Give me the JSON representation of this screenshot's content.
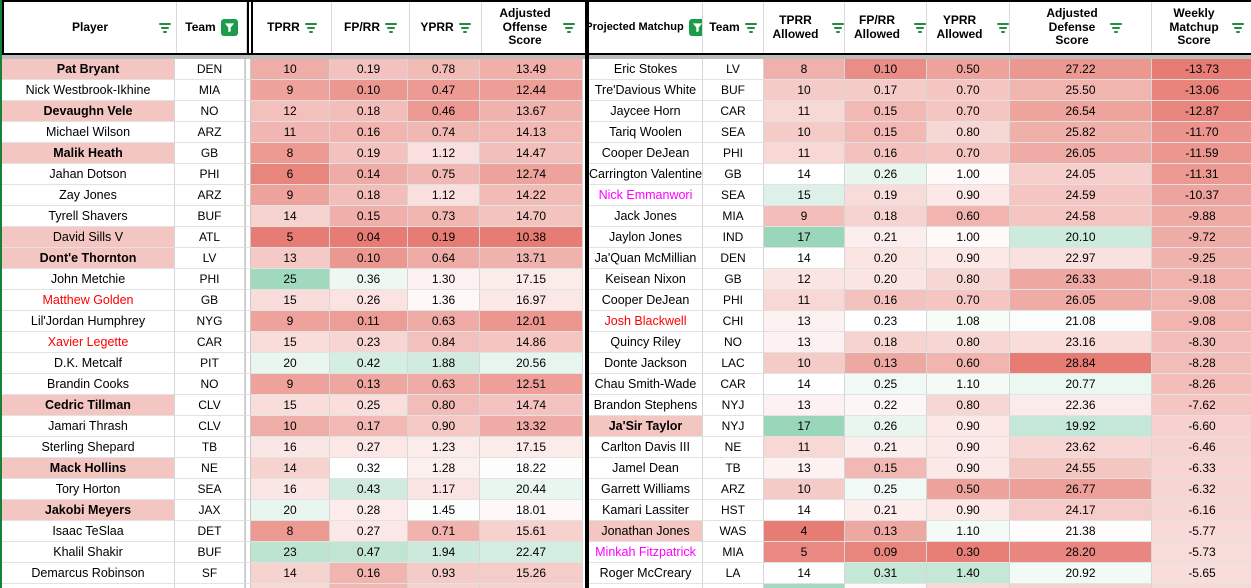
{
  "colors": {
    "gradient_red": "#e67c73",
    "gradient_green": "#57bb8a",
    "name_highlight_pink": "#f4c6c2",
    "red_text": "#ff0000",
    "magenta_text": "#ff00ff",
    "filter_icon_green": "#1e8e3e",
    "filter_active_bg": "#1a9c4b",
    "section_border_green": "#188038",
    "section_divider_black": "#000000",
    "frozen_band_grey": "#bdbdbd"
  },
  "left_table": {
    "headers": [
      {
        "label": "Player",
        "filter": "lines"
      },
      {
        "label": "Team",
        "filter": "active"
      },
      {
        "label": "TPRR",
        "filter": "lines"
      },
      {
        "label": "FP/RR",
        "filter": "lines"
      },
      {
        "label": "YPRR",
        "filter": "lines"
      },
      {
        "label": "Adjusted Offense Score",
        "filter": "lines"
      }
    ],
    "scales": {
      "tprr": {
        "min": 5,
        "mid": 18.5,
        "max": 30
      },
      "fprr": {
        "min": 0.04,
        "mid": 0.32,
        "max": 0.72
      },
      "yprr": {
        "min": 0.19,
        "mid": 1.42,
        "max": 3.1
      },
      "score": {
        "min": 10.38,
        "mid": 18.4,
        "max": 33.8
      }
    },
    "rows": [
      {
        "name": "Pat Bryant",
        "team": "DEN",
        "style": "bold-pink",
        "values": [
          "10",
          "0.19",
          "0.78",
          "13.49"
        ]
      },
      {
        "name": "Nick Westbrook-Ikhine",
        "team": "MIA",
        "style": "normal",
        "values": [
          "9",
          "0.10",
          "0.47",
          "12.44"
        ]
      },
      {
        "name": "Devaughn Vele",
        "team": "NO",
        "style": "bold-pink",
        "values": [
          "12",
          "0.18",
          "0.46",
          "13.67"
        ]
      },
      {
        "name": "Michael Wilson",
        "team": "ARZ",
        "style": "normal",
        "values": [
          "11",
          "0.16",
          "0.74",
          "14.13"
        ]
      },
      {
        "name": "Malik Heath",
        "team": "GB",
        "style": "bold-pink",
        "values": [
          "8",
          "0.19",
          "1.12",
          "14.47"
        ]
      },
      {
        "name": "Jahan Dotson",
        "team": "PHI",
        "style": "normal",
        "values": [
          "6",
          "0.14",
          "0.75",
          "12.74"
        ]
      },
      {
        "name": "Zay Jones",
        "team": "ARZ",
        "style": "normal",
        "values": [
          "9",
          "0.18",
          "1.12",
          "14.22"
        ]
      },
      {
        "name": "Tyrell Shavers",
        "team": "BUF",
        "style": "normal",
        "values": [
          "14",
          "0.15",
          "0.73",
          "14.70"
        ]
      },
      {
        "name": "David Sills V",
        "team": "ATL",
        "style": "pink",
        "values": [
          "5",
          "0.04",
          "0.19",
          "10.38"
        ]
      },
      {
        "name": "Dont'e Thornton",
        "team": "LV",
        "style": "bold-pink",
        "values": [
          "13",
          "0.10",
          "0.64",
          "13.71"
        ]
      },
      {
        "name": "John Metchie",
        "team": "PHI",
        "style": "normal",
        "values": [
          "25",
          "0.36",
          "1.30",
          "17.15"
        ]
      },
      {
        "name": "Matthew Golden",
        "team": "GB",
        "style": "red",
        "values": [
          "15",
          "0.26",
          "1.36",
          "16.97"
        ]
      },
      {
        "name": "Lil'Jordan Humphrey",
        "team": "NYG",
        "style": "normal",
        "values": [
          "9",
          "0.11",
          "0.63",
          "12.01"
        ]
      },
      {
        "name": "Xavier Legette",
        "team": "CAR",
        "style": "red",
        "values": [
          "15",
          "0.23",
          "0.84",
          "14.86"
        ]
      },
      {
        "name": "D.K. Metcalf",
        "team": "PIT",
        "style": "normal",
        "values": [
          "20",
          "0.42",
          "1.88",
          "20.56"
        ]
      },
      {
        "name": "Brandin Cooks",
        "team": "NO",
        "style": "normal",
        "values": [
          "9",
          "0.13",
          "0.63",
          "12.51"
        ]
      },
      {
        "name": "Cedric Tillman",
        "team": "CLV",
        "style": "bold-pink",
        "values": [
          "15",
          "0.25",
          "0.80",
          "14.74"
        ]
      },
      {
        "name": "Jamari Thrash",
        "team": "CLV",
        "style": "normal",
        "values": [
          "10",
          "0.17",
          "0.90",
          "13.32"
        ]
      },
      {
        "name": "Sterling Shepard",
        "team": "TB",
        "style": "normal",
        "values": [
          "16",
          "0.27",
          "1.23",
          "17.15"
        ]
      },
      {
        "name": "Mack Hollins",
        "team": "NE",
        "style": "bold-pink",
        "values": [
          "14",
          "0.32",
          "1.28",
          "18.22"
        ]
      },
      {
        "name": "Tory Horton",
        "team": "SEA",
        "style": "normal",
        "values": [
          "16",
          "0.43",
          "1.17",
          "20.44"
        ]
      },
      {
        "name": "Jakobi Meyers",
        "team": "JAX",
        "style": "bold-pink",
        "values": [
          "20",
          "0.28",
          "1.45",
          "18.01"
        ]
      },
      {
        "name": "Isaac TeSlaa",
        "team": "DET",
        "style": "normal",
        "values": [
          "8",
          "0.27",
          "0.71",
          "15.61"
        ]
      },
      {
        "name": "Khalil Shakir",
        "team": "BUF",
        "style": "normal",
        "values": [
          "23",
          "0.47",
          "1.94",
          "22.47"
        ]
      },
      {
        "name": "Demarcus Robinson",
        "team": "SF",
        "style": "normal",
        "values": [
          "14",
          "0.16",
          "0.93",
          "15.26"
        ]
      }
    ],
    "sliver_tones": [
      -0.3,
      -0.55,
      -0.35,
      -0.35
    ]
  },
  "right_table": {
    "headers": [
      {
        "label": "Projected Matchup",
        "filter": "active"
      },
      {
        "label": "Team",
        "filter": "lines"
      },
      {
        "label": "TPRR Allowed",
        "filter": "lines"
      },
      {
        "label": "FP/RR Allowed",
        "filter": "lines"
      },
      {
        "label": "YPRR Allowed",
        "filter": "lines"
      },
      {
        "label": "Adjusted Defense Score",
        "filter": "lines"
      },
      {
        "label": "Weekly Matchup Score",
        "filter": "lines"
      }
    ],
    "scales": {
      "tprr": {
        "min": 4,
        "mid": 14,
        "max": 19
      },
      "fprr": {
        "min": 0.08,
        "mid": 0.23,
        "max": 0.46
      },
      "yprr": {
        "min": 0.28,
        "mid": 1.03,
        "max": 2.09
      },
      "def": {
        "min": 17.5,
        "mid": 21.2,
        "max": 28.84,
        "invert": true
      },
      "weekly": {
        "min": -13.73,
        "mid": -2.8,
        "max": -2.0
      }
    },
    "rows": [
      {
        "name": "Eric Stokes",
        "team": "LV",
        "style": "normal",
        "values": [
          "8",
          "0.10",
          "0.50",
          "27.22",
          "-13.73"
        ]
      },
      {
        "name": "Tre'Davious White",
        "team": "BUF",
        "style": "normal",
        "values": [
          "10",
          "0.17",
          "0.70",
          "25.50",
          "-13.06"
        ]
      },
      {
        "name": "Jaycee Horn",
        "team": "CAR",
        "style": "normal",
        "values": [
          "11",
          "0.15",
          "0.70",
          "26.54",
          "-12.87"
        ]
      },
      {
        "name": "Tariq Woolen",
        "team": "SEA",
        "style": "normal",
        "values": [
          "10",
          "0.15",
          "0.80",
          "25.82",
          "-11.70"
        ]
      },
      {
        "name": "Cooper DeJean",
        "team": "PHI",
        "style": "normal",
        "values": [
          "11",
          "0.16",
          "0.70",
          "26.05",
          "-11.59"
        ]
      },
      {
        "name": "Carrington Valentine",
        "team": "GB",
        "style": "normal",
        "values": [
          "14",
          "0.26",
          "1.00",
          "24.05",
          "-11.31"
        ]
      },
      {
        "name": "Nick Emmanwori",
        "team": "SEA",
        "style": "magenta",
        "values": [
          "15",
          "0.19",
          "0.90",
          "24.59",
          "-10.37"
        ]
      },
      {
        "name": "Jack Jones",
        "team": "MIA",
        "style": "normal",
        "values": [
          "9",
          "0.18",
          "0.60",
          "24.58",
          "-9.88"
        ]
      },
      {
        "name": "Jaylon Jones",
        "team": "IND",
        "style": "normal",
        "values": [
          "17",
          "0.21",
          "1.00",
          "20.10",
          "-9.72"
        ]
      },
      {
        "name": "Ja'Quan McMillian",
        "team": "DEN",
        "style": "normal",
        "values": [
          "14",
          "0.20",
          "0.90",
          "22.97",
          "-9.25"
        ]
      },
      {
        "name": "Keisean Nixon",
        "team": "GB",
        "style": "normal",
        "values": [
          "12",
          "0.20",
          "0.80",
          "26.33",
          "-9.18"
        ]
      },
      {
        "name": "Cooper DeJean",
        "team": "PHI",
        "style": "normal",
        "values": [
          "11",
          "0.16",
          "0.70",
          "26.05",
          "-9.08"
        ]
      },
      {
        "name": "Josh Blackwell",
        "team": "CHI",
        "style": "red",
        "values": [
          "13",
          "0.23",
          "1.08",
          "21.08",
          "-9.08"
        ]
      },
      {
        "name": "Quincy Riley",
        "team": "NO",
        "style": "normal",
        "values": [
          "13",
          "0.18",
          "0.80",
          "23.16",
          "-8.30"
        ]
      },
      {
        "name": "Donte Jackson",
        "team": "LAC",
        "style": "normal",
        "values": [
          "10",
          "0.13",
          "0.60",
          "28.84",
          "-8.28"
        ]
      },
      {
        "name": "Chau Smith-Wade",
        "team": "CAR",
        "style": "normal",
        "values": [
          "14",
          "0.25",
          "1.10",
          "20.77",
          "-8.26"
        ]
      },
      {
        "name": "Brandon Stephens",
        "team": "NYJ",
        "style": "normal",
        "values": [
          "13",
          "0.22",
          "0.80",
          "22.36",
          "-7.62"
        ]
      },
      {
        "name": "Ja'Sir Taylor",
        "team": "NYJ",
        "style": "bold-pink",
        "values": [
          "17",
          "0.26",
          "0.90",
          "19.92",
          "-6.60"
        ]
      },
      {
        "name": "Carlton Davis III",
        "team": "NE",
        "style": "normal",
        "values": [
          "11",
          "0.21",
          "0.90",
          "23.62",
          "-6.46"
        ]
      },
      {
        "name": "Jamel Dean",
        "team": "TB",
        "style": "normal",
        "values": [
          "13",
          "0.15",
          "0.90",
          "24.55",
          "-6.33"
        ]
      },
      {
        "name": "Garrett Williams",
        "team": "ARZ",
        "style": "normal",
        "values": [
          "10",
          "0.25",
          "0.50",
          "26.77",
          "-6.32"
        ]
      },
      {
        "name": "Kamari Lassiter",
        "team": "HST",
        "style": "normal",
        "values": [
          "14",
          "0.21",
          "0.90",
          "24.17",
          "-6.16"
        ]
      },
      {
        "name": "Jonathan Jones",
        "team": "WAS",
        "style": "pink",
        "values": [
          "4",
          "0.13",
          "1.10",
          "21.38",
          "-5.77"
        ]
      },
      {
        "name": "Minkah Fitzpatrick",
        "team": "MIA",
        "style": "magenta",
        "values": [
          "5",
          "0.09",
          "0.30",
          "28.20",
          "-5.73"
        ]
      },
      {
        "name": "Roger McCreary",
        "team": "LA",
        "style": "normal",
        "values": [
          "14",
          "0.31",
          "1.40",
          "20.92",
          "-5.65"
        ]
      }
    ],
    "sliver_tones": [
      0.55,
      -0.05,
      -0.3,
      -0.35,
      -0.3
    ]
  }
}
